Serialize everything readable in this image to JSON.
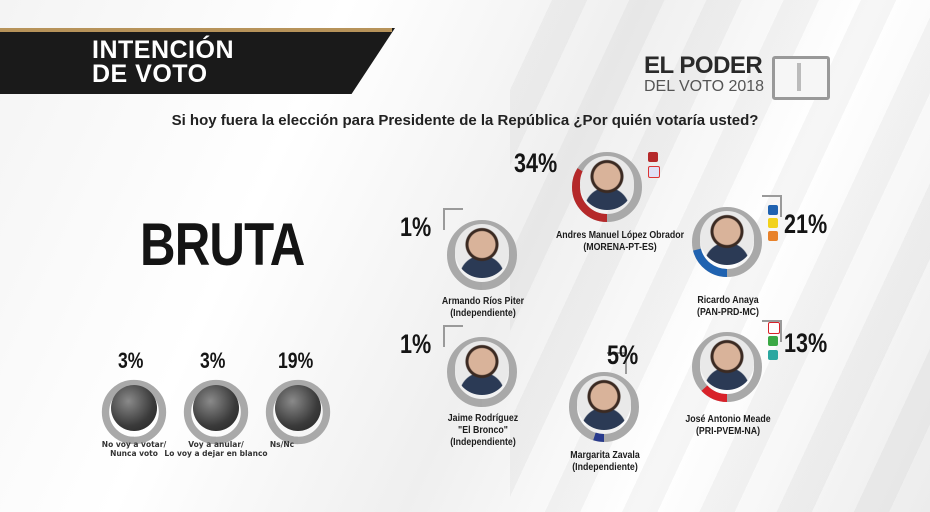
{
  "header": {
    "title_line1": "INTENCIÓN",
    "title_line2": "DE VOTO"
  },
  "logo": {
    "line1": "EL PODER",
    "line2": "DEL VOTO 2018"
  },
  "question": "Si hoy fuera la elección para Presidente de la República ¿Por quién votaría usted?",
  "section_label": "BRUTA",
  "colors": {
    "morena": "#b5292a",
    "pan": "#1f62b0",
    "pri": "#d8222a",
    "zavala": "#283a8c",
    "ring_gray": "#a7a7a7"
  },
  "candidates": [
    {
      "id": "amlo",
      "pct": "34%",
      "value": 34,
      "name": "Andres Manuel López Obrador",
      "party": "(MORENA-PT-ES)"
    },
    {
      "id": "anaya",
      "pct": "21%",
      "value": 21,
      "name": "Ricardo Anaya",
      "party": "(PAN-PRD-MC)"
    },
    {
      "id": "meade",
      "pct": "13%",
      "value": 13,
      "name": "José Antonio Meade",
      "party": "(PRI-PVEM-NA)"
    },
    {
      "id": "zavala",
      "pct": "5%",
      "value": 5,
      "name": "Margarita Zavala",
      "party": "(Independiente)"
    },
    {
      "id": "rios",
      "pct": "1%",
      "value": 1,
      "name": "Armando Ríos Piter",
      "party": "(Independiente)"
    },
    {
      "id": "bronco",
      "pct": "1%",
      "value": 1,
      "name": "Jaime Rodríguez",
      "nickname": "\"El Bronco\"",
      "party": "(Independiente)"
    }
  ],
  "others": [
    {
      "pct": "3%",
      "value": 3,
      "label_line1": "No voy a votar/",
      "label_line2": "Nunca voto"
    },
    {
      "pct": "3%",
      "value": 3,
      "label_line1": "Voy a anular/",
      "label_line2": "Lo voy a dejar en blanco"
    },
    {
      "pct": "19%",
      "value": 19,
      "label_line1": "Ns/Nc",
      "label_line2": ""
    }
  ]
}
